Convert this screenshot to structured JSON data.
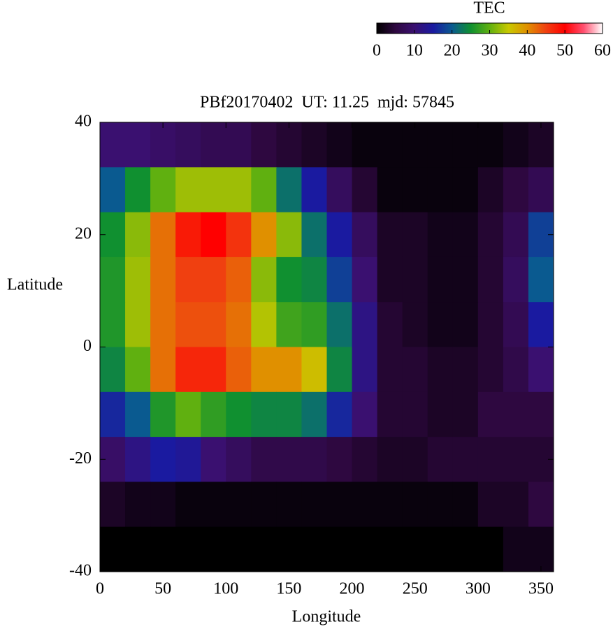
{
  "chart_data": {
    "type": "heatmap",
    "title": "PBf20170402  UT: 11.25  mjd: 57845",
    "x_label": "Longitude",
    "y_label": "Latitude",
    "xlim": [
      0,
      360
    ],
    "ylim": [
      -40,
      40
    ],
    "xticks": [
      0,
      50,
      100,
      150,
      200,
      250,
      300,
      350
    ],
    "yticks": [
      -40,
      -20,
      0,
      20,
      40
    ],
    "x": [
      10,
      30,
      50,
      70,
      90,
      110,
      130,
      150,
      170,
      190,
      210,
      230,
      250,
      270,
      290,
      310,
      330,
      350
    ],
    "y": [
      36,
      28,
      20,
      12,
      4,
      -4,
      -12,
      -20,
      -28,
      -36
    ],
    "z": [
      [
        10,
        10,
        9,
        8,
        7,
        7,
        5,
        4,
        3,
        2,
        1,
        1,
        1,
        1,
        1,
        1,
        2,
        3
      ],
      [
        20,
        25,
        30,
        33,
        33,
        33,
        30,
        22,
        15,
        8,
        4,
        1,
        1,
        1,
        1,
        3,
        5,
        7
      ],
      [
        25,
        32,
        42,
        48,
        50,
        46,
        40,
        32,
        22,
        15,
        8,
        3,
        3,
        2,
        2,
        4,
        7,
        18
      ],
      [
        26,
        33,
        42,
        45,
        45,
        43,
        32,
        25,
        24,
        18,
        10,
        3,
        3,
        2,
        2,
        4,
        8,
        20
      ],
      [
        26,
        33,
        42,
        44,
        44,
        42,
        34,
        28,
        27,
        22,
        12,
        4,
        3,
        2,
        2,
        4,
        7,
        15
      ],
      [
        24,
        30,
        42,
        47,
        47,
        43,
        40,
        40,
        36,
        24,
        12,
        4,
        4,
        3,
        3,
        4,
        6,
        10
      ],
      [
        16,
        20,
        26,
        30,
        27,
        25,
        24,
        24,
        22,
        16,
        10,
        4,
        4,
        3,
        3,
        5,
        5,
        5
      ],
      [
        9,
        12,
        15,
        14,
        10,
        8,
        6,
        6,
        6,
        5,
        4,
        3,
        3,
        4,
        4,
        4,
        4,
        4
      ],
      [
        3,
        2,
        2,
        1,
        1,
        1,
        1,
        1,
        1,
        1,
        1,
        1,
        1,
        1,
        1,
        3,
        3,
        5
      ],
      [
        0,
        0,
        0,
        0,
        0,
        0,
        0,
        0,
        0,
        0,
        0,
        0,
        0,
        0,
        0,
        0,
        2,
        2
      ]
    ],
    "colorbar_label": "TEC",
    "clim": [
      0,
      60
    ],
    "cticks": [
      0,
      10,
      20,
      30,
      40,
      50,
      60
    ],
    "colormap": [
      "#000000",
      "#2e0840",
      "#3a1070",
      "#1a1aa0",
      "#0a5a90",
      "#109030",
      "#60b010",
      "#c8c800",
      "#e09000",
      "#f04010",
      "#ff0000",
      "#ff5070",
      "#ffffff"
    ]
  }
}
